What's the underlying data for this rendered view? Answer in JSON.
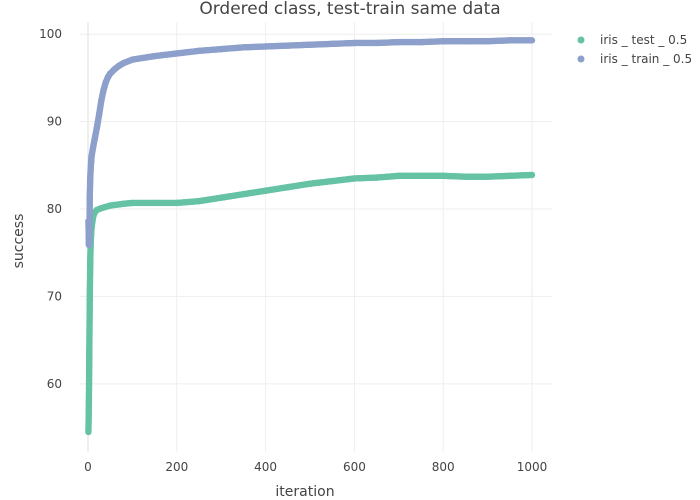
{
  "chart_data": {
    "type": "scatter",
    "title": "Ordered class, test-train same data",
    "xlabel": "iteration",
    "ylabel": "success",
    "xlim": [
      -18,
      1045
    ],
    "ylim": [
      52.2,
      101.4
    ],
    "xticks": [
      0,
      200,
      400,
      600,
      800,
      1000
    ],
    "yticks": [
      60,
      70,
      80,
      90,
      100
    ],
    "grid": true,
    "legend_position": "top-right",
    "series": [
      {
        "name": "iris _ test _ 0.5",
        "color": "#66c2a5",
        "x": [
          1,
          2,
          3,
          4,
          5,
          6,
          7,
          8,
          10,
          12,
          15,
          20,
          30,
          50,
          80,
          100,
          150,
          200,
          250,
          300,
          350,
          400,
          450,
          500,
          550,
          600,
          650,
          700,
          750,
          800,
          850,
          900,
          950,
          1000
        ],
        "y": [
          54.5,
          57.8,
          63.8,
          69.7,
          73.8,
          76.0,
          77.0,
          77.8,
          78.6,
          79.2,
          79.6,
          79.9,
          80.1,
          80.4,
          80.6,
          80.7,
          80.7,
          80.7,
          80.9,
          81.3,
          81.7,
          82.1,
          82.5,
          82.9,
          83.2,
          83.5,
          83.6,
          83.8,
          83.8,
          83.8,
          83.7,
          83.7,
          83.8,
          83.9
        ]
      },
      {
        "name": "iris _ train _ 0.5",
        "color": "#8da0cb",
        "x": [
          1,
          2,
          3,
          4,
          5,
          6,
          7,
          8,
          10,
          12,
          15,
          20,
          25,
          30,
          35,
          40,
          45,
          50,
          60,
          70,
          80,
          100,
          150,
          200,
          250,
          300,
          350,
          400,
          450,
          500,
          550,
          600,
          650,
          700,
          750,
          800,
          850,
          900,
          950,
          1000
        ],
        "y": [
          78.6,
          75.9,
          76.0,
          81.4,
          83.4,
          84.6,
          85.3,
          86.0,
          86.6,
          87.2,
          88.0,
          89.3,
          90.8,
          92.4,
          93.6,
          94.5,
          95.1,
          95.5,
          96.0,
          96.4,
          96.7,
          97.1,
          97.5,
          97.8,
          98.1,
          98.3,
          98.5,
          98.6,
          98.7,
          98.8,
          98.9,
          99.0,
          99.0,
          99.1,
          99.1,
          99.2,
          99.2,
          99.2,
          99.3,
          99.3
        ]
      }
    ]
  }
}
